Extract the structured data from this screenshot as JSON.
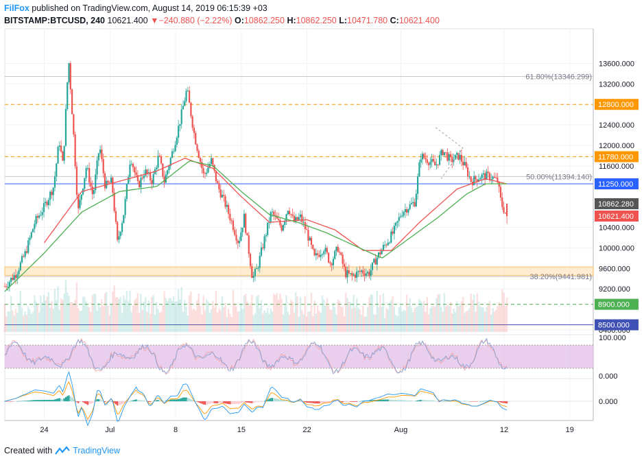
{
  "header": {
    "author": "FilFox",
    "published_text": "published on TradingView.com, August 14, 2019 06:15:39 +03",
    "symbol": "BITSTAMP:BTCUSD, 240",
    "last": "10621.400",
    "change": "−240.880 (−2.22%)",
    "o_label": "O:",
    "o": "10862.250",
    "h_label": "H:",
    "h": "10862.250",
    "l_label": "L:",
    "l": "10471.780",
    "c_label": "C:",
    "c": "10621.400"
  },
  "footer": {
    "created_with": "Created with",
    "brand": "TradingView"
  },
  "colors": {
    "up": "#26a69a",
    "down": "#ef5350",
    "ma_fast": "#ef5350",
    "ma_slow": "#4caf50",
    "accent": "#2196f3"
  },
  "chart_data": {
    "type": "candlestick",
    "symbol": "BITSTAMP:BTCUSD",
    "timeframe": "240",
    "price_axis": {
      "ylim": [
        8400,
        13900
      ],
      "ticks": [
        13600,
        13200,
        12800,
        12400,
        12000,
        11600,
        10400,
        10000,
        9600,
        9200,
        8400
      ],
      "tick_labels": [
        "13600.000",
        "13200.000",
        "12800.000",
        "12400.000",
        "12000.000",
        "11600.000",
        "10400.000",
        "10000.000",
        "9600.000",
        "9200.000",
        "8400.000"
      ]
    },
    "time_axis": {
      "labels": [
        "24",
        "Jul",
        "8",
        "15",
        "22",
        "Aug",
        "12",
        "19"
      ],
      "label_days": [
        0,
        7,
        14,
        21,
        28,
        38,
        49,
        56
      ],
      "xlim_days": [
        -4.2,
        58.5
      ]
    },
    "price_tags": [
      {
        "label": "12800.000",
        "price": 12800,
        "color": "#ff9800",
        "line": "dashed"
      },
      {
        "label": "11780.000",
        "price": 11780,
        "color": "#ff9800",
        "line": "dashed"
      },
      {
        "label": "11250.000",
        "price": 11250,
        "color": "#2962ff",
        "line": "solid"
      },
      {
        "label": "10862.280",
        "price": 10862.28,
        "color": "#555555",
        "line": "none"
      },
      {
        "label": "10621.400",
        "price": 10621.4,
        "color": "#ef5350",
        "line": "none"
      },
      {
        "label": "8900.000",
        "price": 8900,
        "color": "#4caf50",
        "line": "dashed"
      },
      {
        "label": "8500.000",
        "price": 8500,
        "color": "#3f51b5",
        "line": "solid"
      }
    ],
    "fib_levels": [
      {
        "label": "61.80%(13346.299)",
        "price": 13346.3
      },
      {
        "label": "50.00%(11394.140)",
        "price": 11394.14
      },
      {
        "label": "38.20%(9441.981)",
        "price": 9441.98
      }
    ],
    "support_zone": [
      9460,
      9630
    ],
    "prices_key": [
      [
        -4.2,
        9250
      ],
      [
        -3,
        9500
      ],
      [
        -2,
        9900
      ],
      [
        -1,
        10500
      ],
      [
        0,
        10800
      ],
      [
        1,
        11200
      ],
      [
        1.6,
        12100
      ],
      [
        2,
        11600
      ],
      [
        2.6,
        13700
      ],
      [
        3.1,
        12300
      ],
      [
        3.6,
        10700
      ],
      [
        4.5,
        11600
      ],
      [
        5.2,
        11000
      ],
      [
        5.9,
        12000
      ],
      [
        6.5,
        11200
      ],
      [
        7.2,
        11300
      ],
      [
        7.8,
        10100
      ],
      [
        8.5,
        10700
      ],
      [
        9.2,
        11800
      ],
      [
        10,
        11200
      ],
      [
        10.7,
        11500
      ],
      [
        11.5,
        11300
      ],
      [
        12.2,
        11800
      ],
      [
        12.8,
        11300
      ],
      [
        13.7,
        11900
      ],
      [
        14.5,
        12500
      ],
      [
        15.2,
        13100
      ],
      [
        16,
        12200
      ],
      [
        17,
        11400
      ],
      [
        17.8,
        11700
      ],
      [
        18.5,
        11200
      ],
      [
        19.2,
        10900
      ],
      [
        20,
        10500
      ],
      [
        20.7,
        10100
      ],
      [
        21.3,
        10600
      ],
      [
        22.2,
        9400
      ],
      [
        22.7,
        9600
      ],
      [
        23.5,
        10200
      ],
      [
        24.2,
        10700
      ],
      [
        25.3,
        10400
      ],
      [
        26,
        10800
      ],
      [
        26.6,
        10500
      ],
      [
        27.3,
        10600
      ],
      [
        28,
        10300
      ],
      [
        28.8,
        9800
      ],
      [
        29.8,
        10000
      ],
      [
        30.5,
        9700
      ],
      [
        31.3,
        10000
      ],
      [
        32.1,
        9500
      ],
      [
        32.8,
        9450
      ],
      [
        33.8,
        9550
      ],
      [
        34.6,
        9500
      ],
      [
        35.4,
        9800
      ],
      [
        36.1,
        10000
      ],
      [
        37.2,
        10300
      ],
      [
        38.1,
        10700
      ],
      [
        38.8,
        10800
      ],
      [
        39.5,
        10900
      ],
      [
        40.1,
        11800
      ],
      [
        41,
        11700
      ],
      [
        41.7,
        11600
      ],
      [
        42.5,
        11900
      ],
      [
        43.3,
        11700
      ],
      [
        44.2,
        11800
      ],
      [
        44.8,
        11600
      ],
      [
        45.5,
        11300
      ],
      [
        46.5,
        11400
      ],
      [
        47.5,
        11400
      ],
      [
        48.3,
        11300
      ],
      [
        48.7,
        10862
      ],
      [
        49.3,
        10621
      ]
    ],
    "ma_fast_key": [
      [
        0,
        10100
      ],
      [
        4,
        11100
      ],
      [
        8,
        11300
      ],
      [
        12,
        11500
      ],
      [
        15,
        11750
      ],
      [
        18,
        11550
      ],
      [
        21,
        11000
      ],
      [
        24,
        10500
      ],
      [
        28,
        10550
      ],
      [
        31,
        10350
      ],
      [
        34,
        9950
      ],
      [
        37,
        9950
      ],
      [
        40,
        10500
      ],
      [
        44,
        11150
      ],
      [
        47,
        11350
      ],
      [
        49.3,
        11250
      ]
    ],
    "ma_slow_key": [
      [
        -4.2,
        9150
      ],
      [
        0,
        9900
      ],
      [
        4,
        10700
      ],
      [
        8,
        11100
      ],
      [
        12,
        11200
      ],
      [
        15.5,
        11700
      ],
      [
        18,
        11600
      ],
      [
        21,
        11100
      ],
      [
        24,
        10650
      ],
      [
        27,
        10500
      ],
      [
        30,
        10300
      ],
      [
        33,
        10050
      ],
      [
        36,
        9800
      ],
      [
        39,
        10200
      ],
      [
        42,
        10600
      ],
      [
        45,
        11050
      ],
      [
        47,
        11250
      ],
      [
        49.3,
        11250
      ]
    ],
    "rsi": {
      "ylim": [
        0,
        100
      ],
      "ticks": [
        100,
        0
      ],
      "tick_labels": [
        "100.000",
        "0.000"
      ],
      "band": [
        20,
        80
      ]
    },
    "macd": {
      "ticks": [
        0
      ],
      "tick_labels": [
        "0.000"
      ]
    }
  }
}
